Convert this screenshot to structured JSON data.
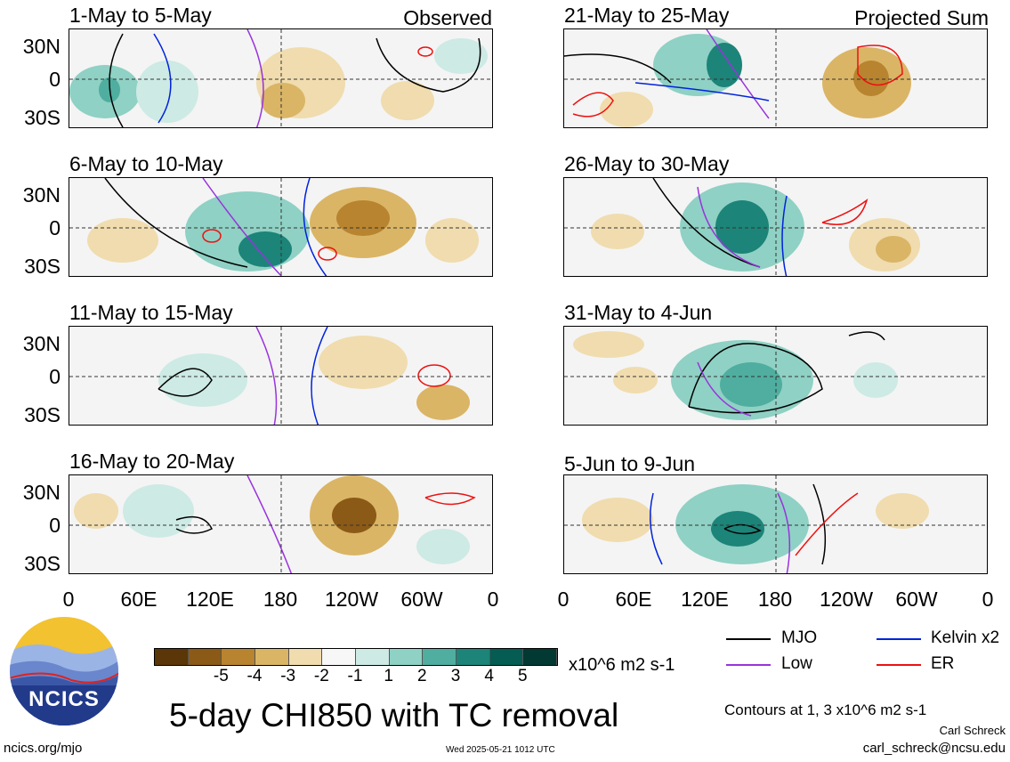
{
  "panels": [
    {
      "title": "1-May to 5-May",
      "tag": "Observed"
    },
    {
      "title": "6-May to 10-May",
      "tag": ""
    },
    {
      "title": "11-May to 15-May",
      "tag": ""
    },
    {
      "title": "16-May to 20-May",
      "tag": ""
    },
    {
      "title": "21-May to 25-May",
      "tag": "Projected Sum"
    },
    {
      "title": "26-May to 30-May",
      "tag": ""
    },
    {
      "title": "31-May to 4-Jun",
      "tag": ""
    },
    {
      "title": "5-Jun to 9-Jun",
      "tag": ""
    }
  ],
  "axes": {
    "y_ticks": [
      "30N",
      "0",
      "30S"
    ],
    "x_ticks": [
      "0",
      "60E",
      "120E",
      "180",
      "120W",
      "60W",
      "0"
    ]
  },
  "colorbar": {
    "colors": [
      "#5a3608",
      "#8b5a17",
      "#b8842f",
      "#dab566",
      "#f0dcae",
      "#f7f7f7",
      "#cdeae4",
      "#8fd1c4",
      "#4fae9f",
      "#1c8478",
      "#045c52",
      "#023a33"
    ],
    "labels": [
      "-5",
      "-4",
      "-3",
      "-2",
      "-1",
      "1",
      "2",
      "3",
      "4",
      "5"
    ],
    "units": "x10^6 m2 s-1"
  },
  "legend": {
    "items": [
      {
        "label": "MJO",
        "color": "#000000"
      },
      {
        "label": "Kelvin x2",
        "color": "#0022dd"
      },
      {
        "label": "Low",
        "color": "#9933dd"
      },
      {
        "label": "ER",
        "color": "#ee1111"
      }
    ],
    "contour_note": "Contours at 1, 3 x10^6 m2 s-1"
  },
  "footer": {
    "main_title": "5-day CHI850 with TC removal",
    "logo_text": "NCICS",
    "website": "ncics.org/mjo",
    "timestamp": "Wed 2025-05-21 1012 UTC",
    "author": "Carl Schreck",
    "email": "carl_schreck@ncsu.edu"
  }
}
